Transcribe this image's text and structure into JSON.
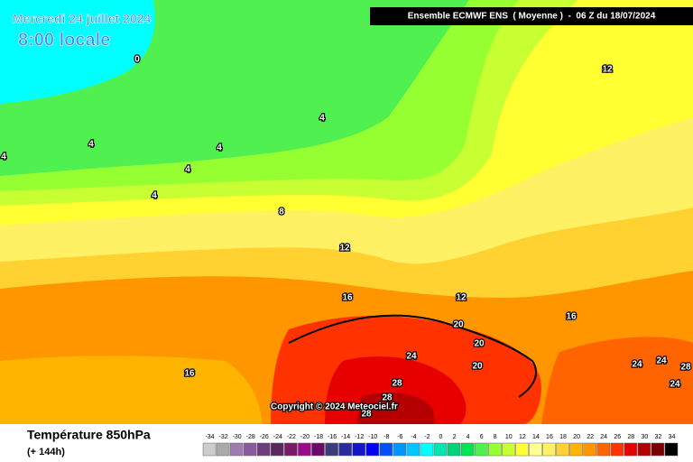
{
  "header": {
    "date": "Mercredi 24 juillet 2024",
    "time": "8:00 locale",
    "model": "Ensemble ECMWF ENS  ( Moyenne )  -  06 Z du 18/07/2024"
  },
  "map": {
    "contour_labels": [
      0,
      4,
      4,
      4,
      4,
      4,
      4,
      8,
      12,
      12,
      12,
      16,
      16,
      16,
      20,
      20,
      20,
      24,
      24,
      24,
      24,
      28,
      28,
      28,
      28
    ]
  },
  "copyright": "Copyright © 2024 Meteociel.fr",
  "footer": {
    "title": "Température 850hPa",
    "subtitle": "(+ 144h)"
  },
  "legend": {
    "values": [
      -34,
      -32,
      -30,
      -28,
      -26,
      -24,
      -22,
      -20,
      -18,
      -16,
      -14,
      -12,
      -10,
      -8,
      -6,
      -4,
      -2,
      0,
      2,
      4,
      6,
      8,
      10,
      12,
      14,
      16,
      18,
      20,
      22,
      24,
      26,
      28,
      30,
      32,
      34
    ],
    "colors": [
      "#cccccc",
      "#aaaaaa",
      "#a07ab0",
      "#8a5a9a",
      "#6e3c7c",
      "#5a285a",
      "#7a1a6a",
      "#9a0a8a",
      "#6a0a6a",
      "#3c3c78",
      "#2a2aa0",
      "#1414c8",
      "#0000ff",
      "#0050ff",
      "#0096ff",
      "#00c8ff",
      "#00ffff",
      "#00e6b4",
      "#00d278",
      "#00e650",
      "#50f050",
      "#96ff32",
      "#c8ff32",
      "#ffff32",
      "#ffff96",
      "#fff064",
      "#ffd232",
      "#ffb400",
      "#ff9600",
      "#ff6400",
      "#ff3200",
      "#e60000",
      "#b40000",
      "#780000",
      "#000000"
    ]
  }
}
